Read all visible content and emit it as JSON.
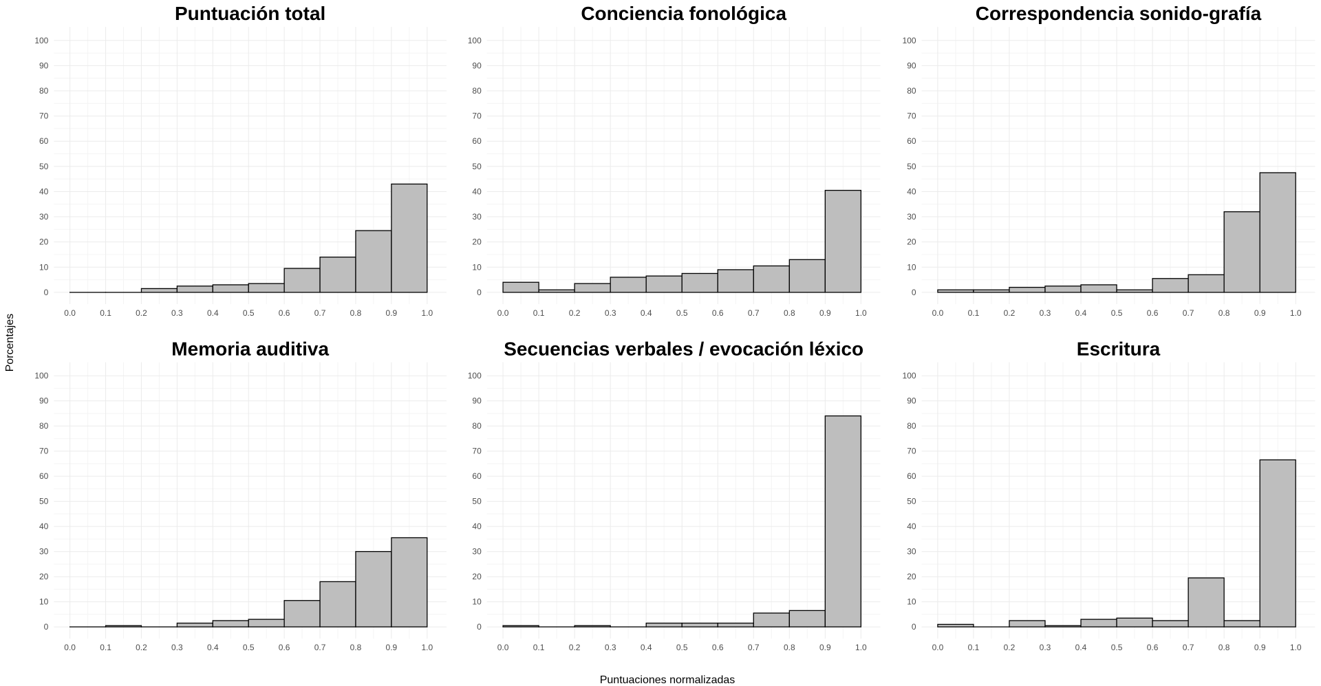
{
  "xlabel": "Puntuaciones normalizadas",
  "ylabel": "Porcentajes",
  "chart_data": [
    {
      "type": "bar",
      "title": "Puntuación total",
      "x_ticks": [
        "0.0",
        "0.1",
        "0.2",
        "0.3",
        "0.4",
        "0.5",
        "0.6",
        "0.7",
        "0.8",
        "0.9",
        "1.0"
      ],
      "y_ticks": [
        "0",
        "10",
        "20",
        "30",
        "40",
        "50",
        "60",
        "70",
        "80",
        "90",
        "100"
      ],
      "xlim": [
        0,
        1
      ],
      "ylim": [
        0,
        100
      ],
      "bin_width": 0.1,
      "bins": [
        0.0,
        0.1,
        0.2,
        0.3,
        0.4,
        0.5,
        0.6,
        0.7,
        0.8,
        0.9
      ],
      "values": [
        0,
        0,
        1.5,
        2.5,
        3,
        3.5,
        9.5,
        14,
        24.5,
        43
      ]
    },
    {
      "type": "bar",
      "title": "Conciencia fonológica",
      "x_ticks": [
        "0.0",
        "0.1",
        "0.2",
        "0.3",
        "0.4",
        "0.5",
        "0.6",
        "0.7",
        "0.8",
        "0.9",
        "1.0"
      ],
      "y_ticks": [
        "0",
        "10",
        "20",
        "30",
        "40",
        "50",
        "60",
        "70",
        "80",
        "90",
        "100"
      ],
      "xlim": [
        0,
        1
      ],
      "ylim": [
        0,
        100
      ],
      "bin_width": 0.1,
      "bins": [
        0.0,
        0.1,
        0.2,
        0.3,
        0.4,
        0.5,
        0.6,
        0.7,
        0.8,
        0.9
      ],
      "values": [
        4,
        1,
        3.5,
        6,
        6.5,
        7.5,
        9,
        10.5,
        13,
        40.5
      ]
    },
    {
      "type": "bar",
      "title": "Correspondencia sonido-grafía",
      "x_ticks": [
        "0.0",
        "0.1",
        "0.2",
        "0.3",
        "0.4",
        "0.5",
        "0.6",
        "0.7",
        "0.8",
        "0.9",
        "1.0"
      ],
      "y_ticks": [
        "0",
        "10",
        "20",
        "30",
        "40",
        "50",
        "60",
        "70",
        "80",
        "90",
        "100"
      ],
      "xlim": [
        0,
        1
      ],
      "ylim": [
        0,
        100
      ],
      "bin_width": 0.1,
      "bins": [
        0.0,
        0.1,
        0.2,
        0.3,
        0.4,
        0.5,
        0.6,
        0.7,
        0.8,
        0.9
      ],
      "values": [
        1,
        1,
        2,
        2.5,
        3,
        1,
        5.5,
        7,
        32,
        47.5
      ]
    },
    {
      "type": "bar",
      "title": "Memoria auditiva",
      "x_ticks": [
        "0.0",
        "0.1",
        "0.2",
        "0.3",
        "0.4",
        "0.5",
        "0.6",
        "0.7",
        "0.8",
        "0.9",
        "1.0"
      ],
      "y_ticks": [
        "0",
        "10",
        "20",
        "30",
        "40",
        "50",
        "60",
        "70",
        "80",
        "90",
        "100"
      ],
      "xlim": [
        0,
        1
      ],
      "ylim": [
        0,
        100
      ],
      "bin_width": 0.1,
      "bins": [
        0.0,
        0.1,
        0.2,
        0.3,
        0.4,
        0.5,
        0.6,
        0.7,
        0.8,
        0.9
      ],
      "values": [
        0,
        0.5,
        0,
        1.5,
        2.5,
        3,
        10.5,
        18,
        30,
        35.5
      ]
    },
    {
      "type": "bar",
      "title": "Secuencias verbales / evocación léxico",
      "x_ticks": [
        "0.0",
        "0.1",
        "0.2",
        "0.3",
        "0.4",
        "0.5",
        "0.6",
        "0.7",
        "0.8",
        "0.9",
        "1.0"
      ],
      "y_ticks": [
        "0",
        "10",
        "20",
        "30",
        "40",
        "50",
        "60",
        "70",
        "80",
        "90",
        "100"
      ],
      "xlim": [
        0,
        1
      ],
      "ylim": [
        0,
        100
      ],
      "bin_width": 0.1,
      "bins": [
        0.0,
        0.1,
        0.2,
        0.3,
        0.4,
        0.5,
        0.6,
        0.7,
        0.8,
        0.9
      ],
      "values": [
        0.5,
        0,
        0.5,
        0,
        1.5,
        1.5,
        1.5,
        5.5,
        6.5,
        84
      ]
    },
    {
      "type": "bar",
      "title": "Escritura",
      "x_ticks": [
        "0.0",
        "0.1",
        "0.2",
        "0.3",
        "0.4",
        "0.5",
        "0.6",
        "0.7",
        "0.8",
        "0.9",
        "1.0"
      ],
      "y_ticks": [
        "0",
        "10",
        "20",
        "30",
        "40",
        "50",
        "60",
        "70",
        "80",
        "90",
        "100"
      ],
      "xlim": [
        0,
        1
      ],
      "ylim": [
        0,
        100
      ],
      "bin_width": 0.1,
      "bins": [
        0.0,
        0.1,
        0.2,
        0.3,
        0.4,
        0.5,
        0.6,
        0.7,
        0.8,
        0.9
      ],
      "values": [
        1,
        0,
        2.5,
        0.5,
        3,
        3.5,
        2.5,
        19.5,
        2.5,
        66.5
      ]
    }
  ]
}
